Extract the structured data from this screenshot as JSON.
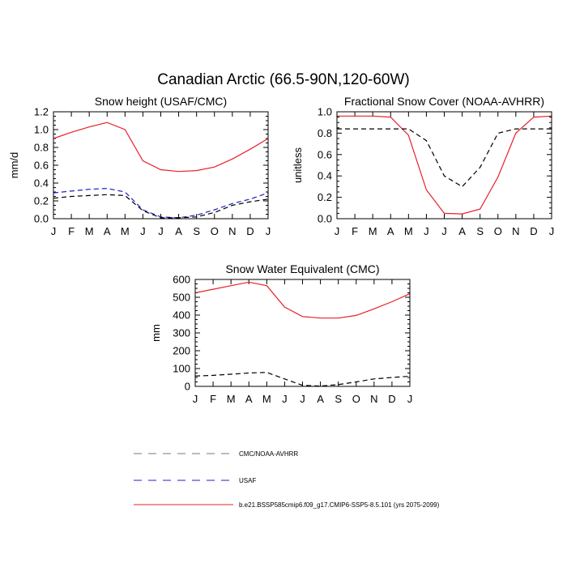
{
  "figure": {
    "title": "Canadian Arctic (66.5-90N,120-60W)"
  },
  "colors": {
    "model": "#e8202a",
    "usaf": "#1d1dc8",
    "obs": "#000000",
    "reference": "#7a7a7a"
  },
  "legend": {
    "items": [
      {
        "label": "CMC/NOAA-AVHRR",
        "color": "#7a7a7a",
        "dash": "dashed"
      },
      {
        "label": "USAF",
        "color": "#1d1dc8",
        "dash": "dashed"
      },
      {
        "label": "b.e21.BSSP585cmip6.f09_g17.CMIP6-SSP5-8.5.101 (yrs 2075-2099)",
        "color": "#e8202a",
        "dash": "solid"
      }
    ]
  },
  "chart_data": [
    {
      "type": "line",
      "title": "Snow height (USAF/CMC)",
      "xlabel": "",
      "ylabel": "mm/d",
      "categories": [
        "J",
        "F",
        "M",
        "A",
        "M",
        "J",
        "J",
        "A",
        "S",
        "O",
        "N",
        "D",
        "J"
      ],
      "ylim": [
        0,
        1.2
      ],
      "yticks": [
        "0.0",
        "0.2",
        "0.4",
        "0.6",
        "0.8",
        "1.0",
        "1.2"
      ],
      "series": [
        {
          "name": "b.e21.BSSP585cmip6.f09_g17.CMIP6-SSP5-8.5.101 (yrs 2075-2099)",
          "color": "#e8202a",
          "dash": "solid",
          "values": [
            0.9,
            0.97,
            1.03,
            1.08,
            1.0,
            0.65,
            0.55,
            0.53,
            0.54,
            0.58,
            0.67,
            0.78,
            0.9
          ]
        },
        {
          "name": "USAF",
          "color": "#1d1dc8",
          "dash": "dashed",
          "values": [
            0.29,
            0.31,
            0.33,
            0.34,
            0.3,
            0.1,
            0.02,
            0.01,
            0.04,
            0.1,
            0.17,
            0.22,
            0.29
          ]
        },
        {
          "name": "CMC/NOAA-AVHRR",
          "color": "#000000",
          "dash": "dashed",
          "values": [
            0.23,
            0.25,
            0.26,
            0.27,
            0.26,
            0.09,
            0.01,
            0.01,
            0.02,
            0.07,
            0.15,
            0.19,
            0.22
          ]
        }
      ]
    },
    {
      "type": "line",
      "title": "Fractional Snow Cover (NOAA-AVHRR)",
      "xlabel": "",
      "ylabel": "unitless",
      "categories": [
        "J",
        "F",
        "M",
        "A",
        "M",
        "J",
        "J",
        "A",
        "S",
        "O",
        "N",
        "D",
        "J"
      ],
      "ylim": [
        0,
        1.0
      ],
      "yticks": [
        "0.0",
        "0.2",
        "0.4",
        "0.6",
        "0.8",
        "1.0"
      ],
      "series": [
        {
          "name": "b.e21.BSSP585cmip6.f09_g17.CMIP6-SSP5-8.5.101 (yrs 2075-2099)",
          "color": "#e8202a",
          "dash": "solid",
          "values": [
            0.96,
            0.96,
            0.96,
            0.95,
            0.78,
            0.27,
            0.05,
            0.045,
            0.09,
            0.39,
            0.8,
            0.95,
            0.96
          ]
        },
        {
          "name": "CMC/NOAA-AVHRR",
          "color": "#000000",
          "dash": "dashed",
          "values": [
            0.84,
            0.84,
            0.84,
            0.84,
            0.84,
            0.73,
            0.4,
            0.3,
            0.48,
            0.8,
            0.84,
            0.84,
            0.84
          ]
        }
      ]
    },
    {
      "type": "line",
      "title": "Snow Water Equivalent (CMC)",
      "xlabel": "",
      "ylabel": "mm",
      "categories": [
        "J",
        "F",
        "M",
        "A",
        "M",
        "J",
        "J",
        "A",
        "S",
        "O",
        "N",
        "D",
        "J"
      ],
      "ylim": [
        0,
        600
      ],
      "yticks": [
        "0",
        "100",
        "200",
        "300",
        "400",
        "500",
        "600"
      ],
      "series": [
        {
          "name": "b.e21.BSSP585cmip6.f09_g17.CMIP6-SSP5-8.5.101 (yrs 2075-2099)",
          "color": "#e8202a",
          "dash": "solid",
          "values": [
            525,
            545,
            565,
            585,
            565,
            445,
            392,
            383,
            383,
            398,
            435,
            475,
            520
          ]
        },
        {
          "name": "CMC/NOAA-AVHRR",
          "color": "#000000",
          "dash": "dashed",
          "values": [
            58,
            62,
            68,
            75,
            78,
            42,
            6,
            2,
            10,
            25,
            42,
            50,
            57
          ]
        }
      ]
    }
  ]
}
